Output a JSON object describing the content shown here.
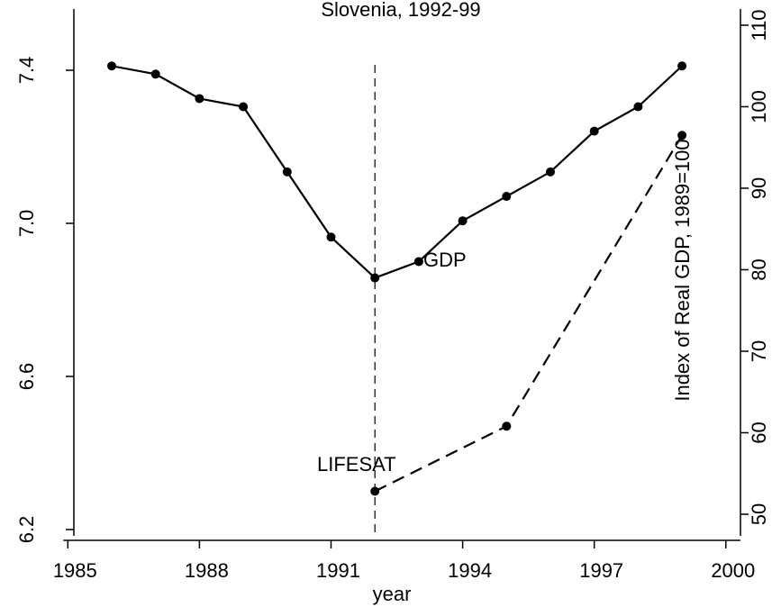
{
  "chart_data": {
    "type": "line",
    "title": "Slovenia, 1992-99",
    "xlabel": "year",
    "y2label": "Index of Real GDP, 1989=100",
    "xlim": [
      1985,
      2000
    ],
    "xticks": [
      1985,
      1988,
      1991,
      1994,
      1997,
      2000
    ],
    "ylim": [
      6.2,
      7.55
    ],
    "yticks": [
      {
        "value": 6.2,
        "label": "6.2"
      },
      {
        "value": 6.6,
        "label": "6.6"
      },
      {
        "value": 7.0,
        "label": "7.0"
      },
      {
        "value": 7.4,
        "label": "7.4"
      }
    ],
    "y2lim": [
      49,
      111.5
    ],
    "y2ticks": [
      50,
      60,
      70,
      80,
      90,
      100,
      110
    ],
    "vline_x": 1992,
    "series": [
      {
        "name": "GDP",
        "color": "#000000",
        "axis": "y2",
        "dashed": false,
        "x": [
          1986,
          1987,
          1988,
          1989,
          1990,
          1991,
          1992,
          1993,
          1994,
          1995,
          1996,
          1997,
          1998,
          1999
        ],
        "values": [
          105,
          104,
          101,
          100,
          92,
          84,
          79,
          81,
          86,
          89,
          92,
          97,
          100,
          105
        ]
      },
      {
        "name": "LIFESAT",
        "color": "#000000",
        "dashed": true,
        "x": [
          1992,
          1995,
          1999
        ],
        "values": [
          6.3,
          6.47,
          7.23
        ]
      }
    ]
  }
}
